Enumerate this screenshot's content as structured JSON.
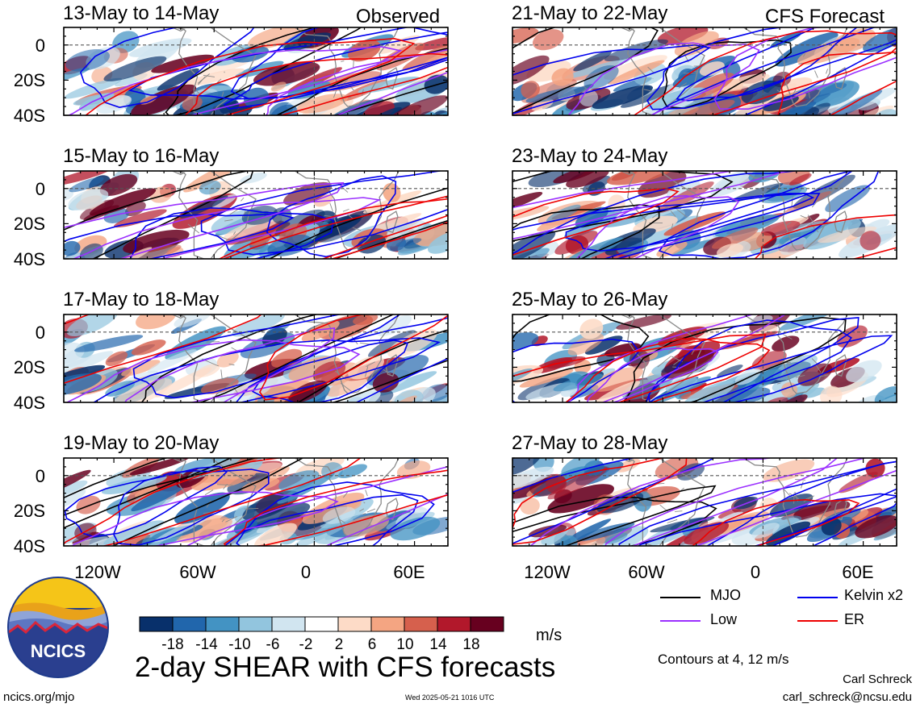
{
  "chart_data": {
    "type": "heatmap",
    "title": "2-day SHEAR with CFS forecasts",
    "variable": "SHEAR",
    "units": "m/s",
    "observed_label": "Observed",
    "forecast_label": "CFS Forecast",
    "lat_ticks": [
      "0",
      "20S",
      "40S"
    ],
    "lon_ticks": [
      "120W",
      "60W",
      "0",
      "60E"
    ],
    "lat_range": [
      -40,
      10
    ],
    "lon_range": [
      -150,
      80
    ],
    "panels": [
      {
        "title": "13-May to 14-May",
        "kind": "observed"
      },
      {
        "title": "15-May to 16-May",
        "kind": "observed"
      },
      {
        "title": "17-May to 18-May",
        "kind": "observed"
      },
      {
        "title": "19-May to 20-May",
        "kind": "observed"
      },
      {
        "title": "21-May to 22-May",
        "kind": "forecast"
      },
      {
        "title": "23-May to 24-May",
        "kind": "forecast"
      },
      {
        "title": "25-May to 26-May",
        "kind": "forecast"
      },
      {
        "title": "27-May to 28-May",
        "kind": "forecast"
      }
    ],
    "colorbar": {
      "colors": [
        "#08306b",
        "#2166ac",
        "#4393c3",
        "#92c5de",
        "#d1e5f0",
        "#ffffff",
        "#fddbc7",
        "#f4a582",
        "#d6604d",
        "#b2182b",
        "#67001f"
      ],
      "tick_labels": [
        "-18",
        "-14",
        "-10",
        "-6",
        "-2",
        "2",
        "6",
        "10",
        "14",
        "18"
      ]
    },
    "legend": [
      {
        "label": "MJO",
        "color": "#000000"
      },
      {
        "label": "Kelvin x2",
        "color": "#0000ee"
      },
      {
        "label": "Low",
        "color": "#9b30ff"
      },
      {
        "label": "ER",
        "color": "#ee0000"
      }
    ],
    "contour_note": "Contours at 4, 12 m/s"
  },
  "footer": {
    "left": "ncics.org/mjo",
    "center": "Wed 2025-05-21 1016 UTC",
    "author": "Carl Schreck",
    "email": "carl_schreck@ncsu.edu"
  },
  "logo": {
    "text": "NCICS"
  }
}
